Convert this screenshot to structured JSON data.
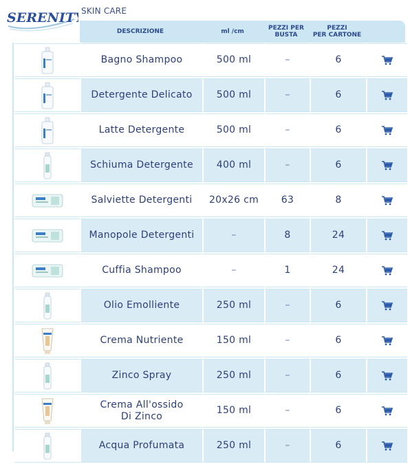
{
  "brand": {
    "name": "SERENITY",
    "section": "SKIN CARE"
  },
  "header": {
    "descrizione": "DESCRIZIONE",
    "ml": "ml /cm",
    "pezzi_busta": [
      "PEZZI PER",
      "BUSTA"
    ],
    "pezzi_cartone": [
      "PEZZI",
      "PER CARTONE"
    ]
  },
  "colors": {
    "header_bg": "#cde6f3",
    "row_alt": "#d9ecf6",
    "text": "#2c3f7a",
    "cart": "#2a5aa8"
  },
  "icons": {
    "cart": "cart-icon",
    "product": "product-image"
  },
  "rows": [
    {
      "desc": [
        "Bagno Shampoo"
      ],
      "ml": "500 ml",
      "pezzi": "–",
      "cartone": "6",
      "kind": "bottle"
    },
    {
      "desc": [
        "Detergente Delicato"
      ],
      "ml": "500 ml",
      "pezzi": "–",
      "cartone": "6",
      "kind": "bottle"
    },
    {
      "desc": [
        "Latte Detergente"
      ],
      "ml": "500 ml",
      "pezzi": "–",
      "cartone": "6",
      "kind": "bottle"
    },
    {
      "desc": [
        "Schiuma Detergente"
      ],
      "ml": "400 ml",
      "pezzi": "–",
      "cartone": "6",
      "kind": "spray"
    },
    {
      "desc": [
        "Salviette Detergenti"
      ],
      "ml": "20x26 cm",
      "pezzi": "63",
      "cartone": "8",
      "kind": "pack"
    },
    {
      "desc": [
        "Manopole Detergenti"
      ],
      "ml": "–",
      "pezzi": "8",
      "cartone": "24",
      "kind": "pack"
    },
    {
      "desc": [
        "Cuffia Shampoo"
      ],
      "ml": "–",
      "pezzi": "1",
      "cartone": "24",
      "kind": "pack"
    },
    {
      "desc": [
        "Olio Emolliente"
      ],
      "ml": "250 ml",
      "pezzi": "–",
      "cartone": "6",
      "kind": "spray"
    },
    {
      "desc": [
        "Crema Nutriente"
      ],
      "ml": "150 ml",
      "pezzi": "–",
      "cartone": "6",
      "kind": "tube"
    },
    {
      "desc": [
        "Zinco Spray"
      ],
      "ml": "250 ml",
      "pezzi": "–",
      "cartone": "6",
      "kind": "spray"
    },
    {
      "desc": [
        "Crema All'ossido",
        "Di Zinco"
      ],
      "ml": "150 ml",
      "pezzi": "–",
      "cartone": "6",
      "kind": "tube"
    },
    {
      "desc": [
        "Acqua Profumata"
      ],
      "ml": "250 ml",
      "pezzi": "–",
      "cartone": "6",
      "kind": "spray"
    }
  ]
}
